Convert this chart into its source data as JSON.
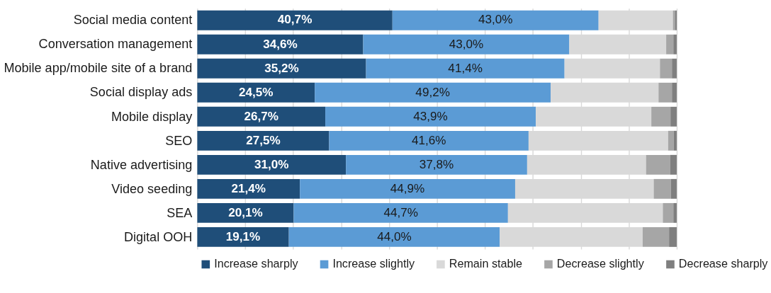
{
  "chart_data": {
    "type": "bar",
    "orientation": "horizontal",
    "stacked": true,
    "categories": [
      "Social media content",
      "Conversation management",
      "Mobile app/mobile site of a brand",
      "Social display ads",
      "Mobile display",
      "SEO",
      "Native advertising",
      "Video seeding",
      "SEA",
      "Digital OOH"
    ],
    "series": [
      {
        "name": "Increase sharply",
        "color": "#1f4e79",
        "values": [
          40.7,
          34.6,
          35.2,
          24.5,
          26.7,
          27.5,
          31.0,
          21.4,
          20.1,
          19.1
        ],
        "value_labels": [
          "40,7%",
          "34,6%",
          "35,2%",
          "24,5%",
          "26,7%",
          "27,5%",
          "31,0%",
          "21,4%",
          "20,1%",
          "19,1%"
        ]
      },
      {
        "name": "Increase slightly",
        "color": "#5b9bd5",
        "values": [
          43.0,
          43.0,
          41.4,
          49.2,
          43.9,
          41.6,
          37.8,
          44.9,
          44.7,
          44.0
        ],
        "value_labels": [
          "43,0%",
          "43,0%",
          "41,4%",
          "49,2%",
          "43,9%",
          "41,6%",
          "37,8%",
          "44,9%",
          "44,7%",
          "44,0%"
        ]
      },
      {
        "name": "Remain stable",
        "color": "#d9d9d9",
        "values": [
          15.5,
          20.2,
          19.9,
          22.5,
          24.1,
          29.1,
          24.8,
          28.9,
          32.3,
          29.8
        ]
      },
      {
        "name": "Decrease slightly",
        "color": "#a6a6a6",
        "values": [
          0.5,
          1.5,
          2.5,
          2.8,
          4.0,
          1.2,
          5.0,
          3.6,
          2.2,
          5.5
        ]
      },
      {
        "name": "Decrease sharply",
        "color": "#7f7f7f",
        "values": [
          0.3,
          0.7,
          1.0,
          1.0,
          1.3,
          0.6,
          1.4,
          1.2,
          0.7,
          1.6
        ]
      }
    ],
    "xlim": [
      0,
      100
    ],
    "xticks": [
      {
        "value": 0,
        "label": null
      },
      {
        "value": 10,
        "label": null
      },
      {
        "value": 20,
        "label": null
      },
      {
        "value": 30,
        "label": null
      },
      {
        "value": 40,
        "label": null
      },
      {
        "value": 50,
        "label": null
      },
      {
        "value": 60,
        "label": null
      },
      {
        "value": 70,
        "label": null
      },
      {
        "value": 80,
        "label": null
      },
      {
        "value": 90,
        "label": null
      },
      {
        "value": 100,
        "label": null
      }
    ],
    "grid": "x",
    "tick_labels": "y",
    "legend": "bottom"
  }
}
